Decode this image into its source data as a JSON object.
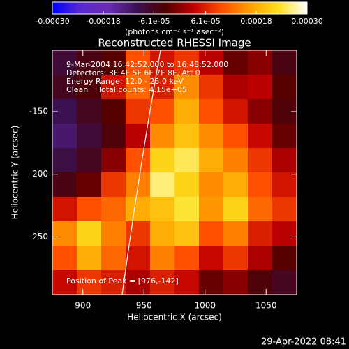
{
  "chart_data": {
    "type": "heatmap",
    "title": "Reconstructed RHESSI Image",
    "xlabel": "Heliocentric X (arcsec)",
    "ylabel": "Heliocentric Y (arcsec)",
    "xlim": [
      875,
      1075
    ],
    "ylim": [
      -296,
      -101
    ],
    "xticks": [
      900,
      950,
      1000,
      1050
    ],
    "yticks": [
      -250,
      -200,
      -150
    ],
    "colorbar": {
      "label": "(photons cm⁻² s⁻¹ asec⁻²)",
      "clim": [
        -0.0003,
        0.0003
      ],
      "ticks": [
        {
          "value": -0.0003,
          "label": "-0.00030"
        },
        -0.00018,
        {
          "value": -6.1e-05,
          "label": "-6.1e-05"
        },
        {
          "value": 6.1e-05,
          "label": "6.1e-05"
        },
        0.00018,
        {
          "value": 0.0003,
          "label": "0.00030"
        }
      ]
    },
    "colormap": [
      "#0000ff",
      "#5a28d0",
      "#6a2cb0",
      "#3a1050",
      "#500000",
      "#c00000",
      "#ff5000",
      "#ffa000",
      "#ffe020",
      "#ffffff"
    ],
    "annotations": [
      "9-Mar-2004 16:42:52.000 to 16:48:52.000",
      "Detectors: 3F 4F 5F 6F 7F 8F, Att 0",
      "Energy Range: 12.0 - 25.0 keV",
      "Clean    Total counts: 4.15e+05"
    ],
    "peak_label": "Position of Peak = [976,-142]",
    "timestamp": "29-Apr-2022 08:41",
    "z": [
      [
        -8e-05,
        -5e-05,
        -3e-05,
        0.0001,
        5e-05,
        8e-05,
        3e-05,
        -2e-05,
        0,
        -5e-05
      ],
      [
        -6e-05,
        -4e-05,
        5e-05,
        0.00012,
        6e-05,
        0.00015,
        8e-05,
        2e-05,
        3e-05,
        -3e-05
      ],
      [
        -0.0001,
        -6e-05,
        -3e-05,
        8e-05,
        0.0001,
        0.00018,
        0.0001,
        5e-05,
        0,
        -4e-05
      ],
      [
        -0.00012,
        -8e-05,
        -4e-05,
        3e-05,
        0.00015,
        0.0002,
        0.00015,
        0.0001,
        4e-05,
        -2e-05
      ],
      [
        -9e-05,
        -6e-05,
        0,
        0.0001,
        0.00022,
        0.00025,
        0.00018,
        0.00014,
        8e-05,
        2e-05
      ],
      [
        -5e-05,
        -2e-05,
        8e-05,
        0.00014,
        0.00026,
        0.00022,
        0.00015,
        0.00018,
        0.0001,
        5e-05
      ],
      [
        5e-05,
        0.0001,
        0.00012,
        0.00018,
        0.0002,
        0.00024,
        0.00016,
        0.00022,
        0.00012,
        8e-05
      ],
      [
        0.00015,
        0.00022,
        0.00014,
        8e-05,
        0.00018,
        0.0002,
        0.0001,
        0.00014,
        6e-05,
        3e-05
      ],
      [
        0.0001,
        0.00018,
        0.00012,
        5e-05,
        0.00014,
        0.0001,
        4e-05,
        8e-05,
        2e-05,
        -3e-05
      ],
      [
        4e-05,
        8e-05,
        6e-05,
        2e-05,
        6e-05,
        4e-05,
        -2e-05,
        0,
        -4e-05,
        -6e-05
      ]
    ]
  }
}
